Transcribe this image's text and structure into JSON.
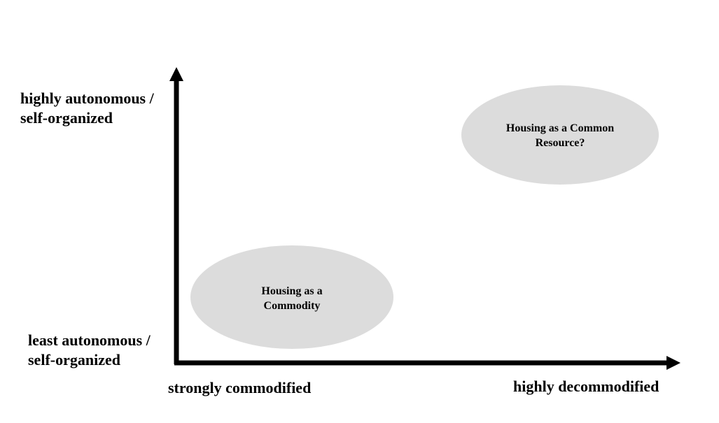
{
  "axes": {
    "y_top": [
      "highly autonomous /",
      "self-organized"
    ],
    "y_bottom": [
      "least autonomous /",
      "self-organized"
    ],
    "x_left": "strongly commodified",
    "x_right": "highly decommodified"
  },
  "regions": {
    "commodity": [
      "Housing as a",
      "Commodity"
    ],
    "common_resource": [
      "Housing as a Common",
      "Resource?"
    ]
  },
  "colors": {
    "ellipse_fill": "#dcdcdc",
    "axis": "#000000"
  }
}
